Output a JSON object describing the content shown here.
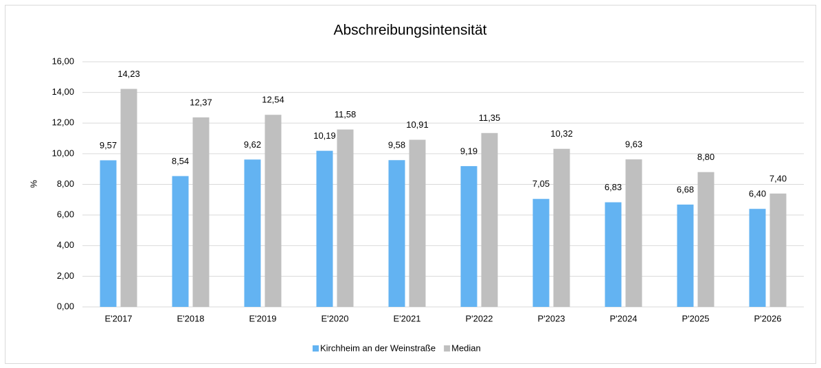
{
  "chart_data": {
    "type": "bar",
    "title": "Abschreibungsintensität",
    "y_label": "%",
    "categories": [
      "E'2017",
      "E'2018",
      "E'2019",
      "E'2020",
      "E'2021",
      "P'2022",
      "P'2023",
      "P'2024",
      "P'2025",
      "P'2026"
    ],
    "series": [
      {
        "name": "Kirchheim an der Weinstraße",
        "color": "#63b3f2",
        "values": [
          9.57,
          8.54,
          9.62,
          10.19,
          9.58,
          9.19,
          7.05,
          6.83,
          6.68,
          6.4
        ],
        "value_labels": [
          "9,57",
          "8,54",
          "9,62",
          "10,19",
          "9,58",
          "9,19",
          "7,05",
          "6,83",
          "6,68",
          "6,40"
        ]
      },
      {
        "name": "Median",
        "color": "#bfbfbf",
        "values": [
          14.23,
          12.37,
          12.54,
          11.58,
          10.91,
          11.35,
          10.32,
          9.63,
          8.8,
          7.4
        ],
        "value_labels": [
          "14,23",
          "12,37",
          "12,54",
          "11,58",
          "10,91",
          "11,35",
          "10,32",
          "9,63",
          "8,80",
          "7,40"
        ]
      }
    ],
    "ylim": [
      0,
      16
    ],
    "yticks": [
      {
        "value": 0,
        "label": "0,00"
      },
      {
        "value": 2,
        "label": "2,00"
      },
      {
        "value": 4,
        "label": "4,00"
      },
      {
        "value": 6,
        "label": "6,00"
      },
      {
        "value": 8,
        "label": "8,00"
      },
      {
        "value": 10,
        "label": "10,00"
      },
      {
        "value": 12,
        "label": "12,00"
      },
      {
        "value": 14,
        "label": "14,00"
      },
      {
        "value": 16,
        "label": "16,00"
      }
    ],
    "grid": true,
    "legend": "bottom"
  }
}
